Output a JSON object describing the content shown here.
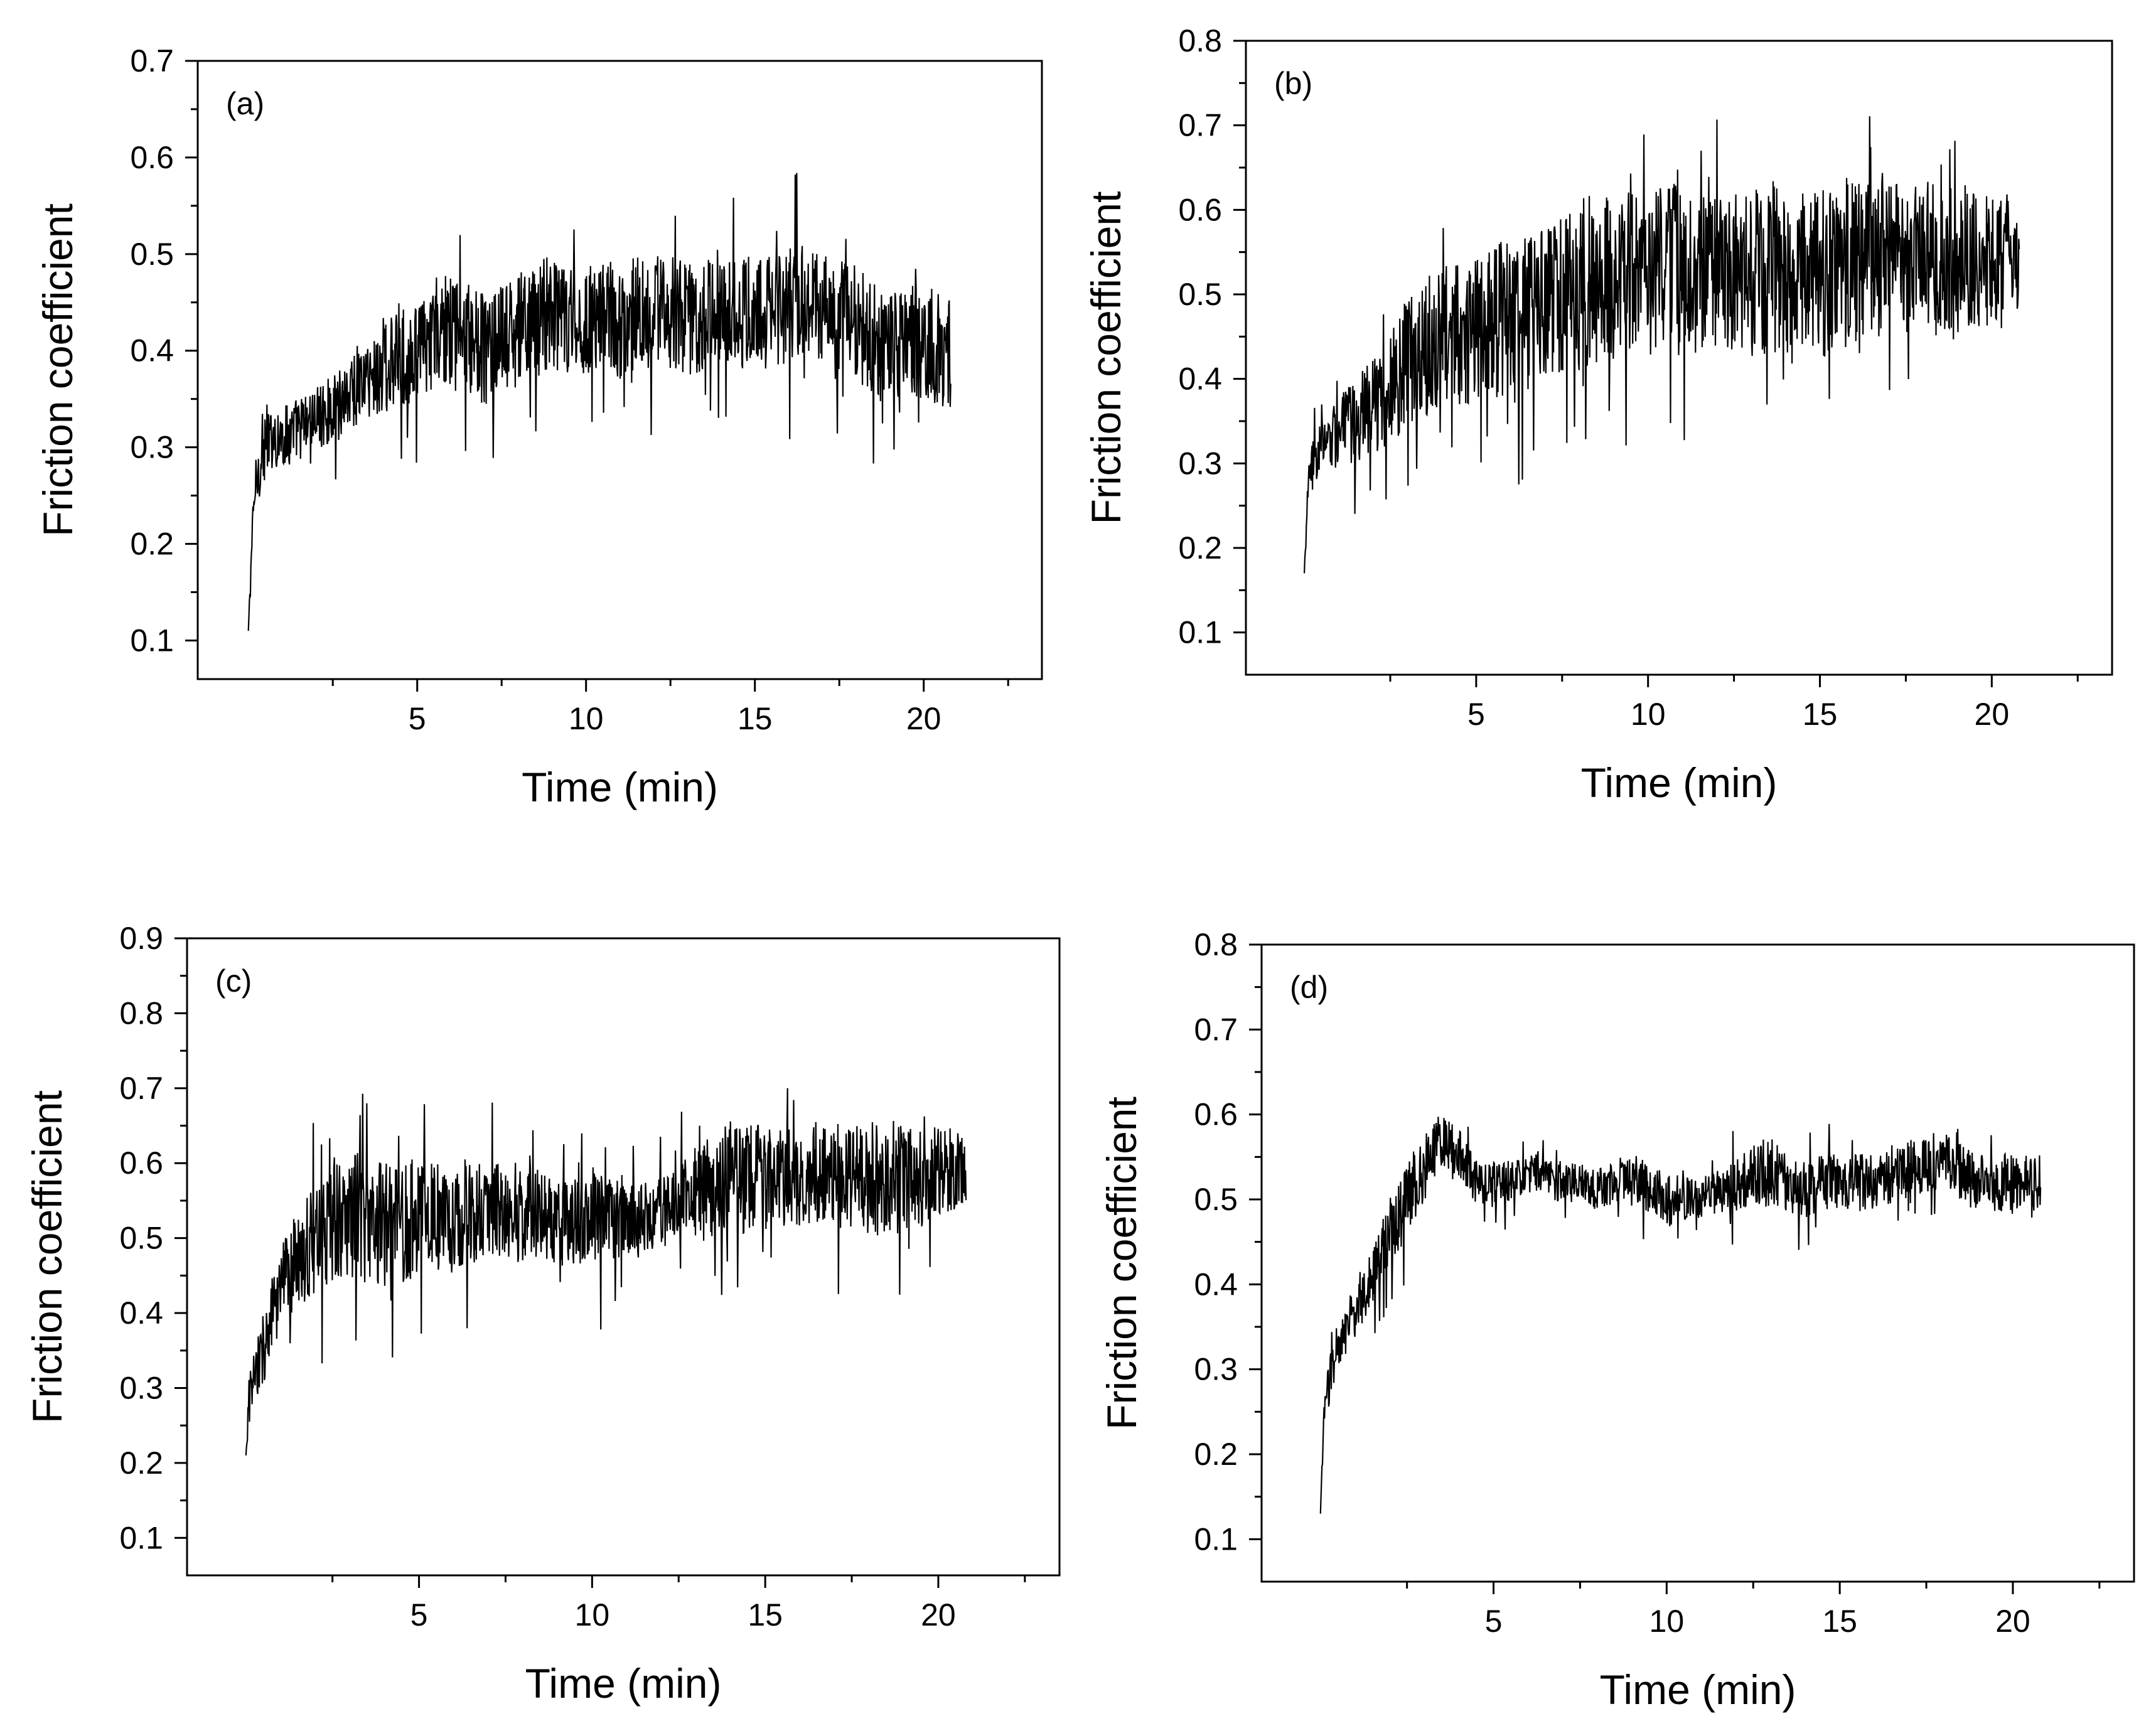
{
  "figure": {
    "description_panels": 4
  },
  "chart_data": [
    {
      "id": "a",
      "type": "line",
      "panel_label": "(a)",
      "title": "",
      "xlabel": "Time (min)",
      "ylabel": "Friction coefficient",
      "xlim": [
        -1.5,
        23.5
      ],
      "ylim": [
        0.06,
        0.7
      ],
      "xticks": [
        5,
        10,
        15,
        20
      ],
      "xtick_labels": [
        "5",
        "10",
        "15",
        "20"
      ],
      "yticks": [
        0.1,
        0.2,
        0.3,
        0.4,
        0.5,
        0.6,
        0.7
      ],
      "ytick_labels": [
        "0.1",
        "0.2",
        "0.3",
        "0.4",
        "0.5",
        "0.6",
        "0.7"
      ],
      "grid": false,
      "legend": "none",
      "series": [
        {
          "name": "friction",
          "x": [
            0,
            0.1,
            0.2,
            0.4,
            0.7,
            1.0,
            1.5,
            2.0,
            2.5,
            3.0,
            3.5,
            4.0,
            4.5,
            5.0,
            5.5,
            6.0,
            6.5,
            7.0,
            7.5,
            8.0,
            8.5,
            9.0,
            9.5,
            10.0,
            10.5,
            11.0,
            11.5,
            12.0,
            12.5,
            13.0,
            13.5,
            14.0,
            14.5,
            15.0,
            15.5,
            16.0,
            16.5,
            17.0,
            17.5,
            18.0,
            18.5,
            19.0,
            19.5,
            20.0,
            20.5,
            20.8
          ],
          "y": [
            0.11,
            0.2,
            0.26,
            0.29,
            0.31,
            0.31,
            0.32,
            0.33,
            0.34,
            0.36,
            0.37,
            0.38,
            0.39,
            0.4,
            0.41,
            0.42,
            0.41,
            0.4,
            0.41,
            0.42,
            0.43,
            0.44,
            0.43,
            0.43,
            0.44,
            0.43,
            0.44,
            0.44,
            0.44,
            0.43,
            0.44,
            0.45,
            0.44,
            0.44,
            0.44,
            0.45,
            0.45,
            0.44,
            0.44,
            0.43,
            0.41,
            0.4,
            0.41,
            0.41,
            0.4,
            0.4
          ],
          "noise_amplitude": [
            0.0,
            0.02,
            0.03,
            0.04,
            0.04,
            0.04,
            0.04,
            0.04,
            0.04,
            0.05,
            0.05,
            0.06,
            0.06,
            0.06,
            0.06,
            0.07,
            0.07,
            0.07,
            0.07,
            0.07,
            0.07,
            0.08,
            0.07,
            0.07,
            0.07,
            0.07,
            0.07,
            0.07,
            0.07,
            0.07,
            0.07,
            0.07,
            0.07,
            0.07,
            0.07,
            0.08,
            0.07,
            0.07,
            0.07,
            0.07,
            0.07,
            0.07,
            0.07,
            0.07,
            0.07,
            0.07
          ],
          "y_min": 0.11,
          "y_max": 0.61
        }
      ]
    },
    {
      "id": "b",
      "type": "line",
      "panel_label": "(b)",
      "title": "",
      "xlabel": "Time (min)",
      "ylabel": "Friction coefficient",
      "xlim": [
        -1.7,
        23.5
      ],
      "ylim": [
        0.05,
        0.8
      ],
      "xticks": [
        5,
        10,
        15,
        20
      ],
      "xtick_labels": [
        "5",
        "10",
        "15",
        "20"
      ],
      "yticks": [
        0.1,
        0.2,
        0.3,
        0.4,
        0.5,
        0.6,
        0.7,
        0.8
      ],
      "ytick_labels": [
        "0.1",
        "0.2",
        "0.3",
        "0.4",
        "0.5",
        "0.6",
        "0.7",
        "0.8"
      ],
      "grid": false,
      "legend": "none",
      "series": [
        {
          "name": "friction",
          "x": [
            0,
            0.1,
            0.3,
            0.6,
            1.0,
            1.5,
            2.0,
            2.5,
            3.0,
            3.5,
            4.0,
            4.5,
            5.0,
            5.5,
            6.0,
            6.5,
            7.0,
            7.5,
            8.0,
            8.5,
            9.0,
            9.5,
            10.0,
            10.5,
            11.0,
            11.5,
            12.0,
            12.5,
            13.0,
            13.5,
            14.0,
            14.5,
            15.0,
            15.5,
            16.0,
            16.5,
            17.0,
            17.5,
            18.0,
            18.5,
            19.0,
            19.5,
            20.0,
            20.5,
            20.8
          ],
          "y": [
            0.17,
            0.26,
            0.31,
            0.32,
            0.34,
            0.35,
            0.37,
            0.39,
            0.42,
            0.44,
            0.45,
            0.45,
            0.46,
            0.47,
            0.47,
            0.48,
            0.5,
            0.5,
            0.51,
            0.52,
            0.52,
            0.52,
            0.53,
            0.53,
            0.53,
            0.53,
            0.53,
            0.52,
            0.52,
            0.53,
            0.52,
            0.52,
            0.52,
            0.53,
            0.53,
            0.53,
            0.55,
            0.55,
            0.55,
            0.54,
            0.54,
            0.55,
            0.54,
            0.55,
            0.54
          ],
          "noise_amplitude": [
            0.0,
            0.04,
            0.04,
            0.04,
            0.05,
            0.06,
            0.07,
            0.08,
            0.09,
            0.1,
            0.1,
            0.1,
            0.1,
            0.11,
            0.11,
            0.11,
            0.11,
            0.11,
            0.12,
            0.12,
            0.12,
            0.12,
            0.12,
            0.12,
            0.12,
            0.12,
            0.12,
            0.12,
            0.12,
            0.12,
            0.12,
            0.12,
            0.12,
            0.12,
            0.12,
            0.12,
            0.1,
            0.1,
            0.1,
            0.11,
            0.11,
            0.1,
            0.1,
            0.08,
            0.07
          ],
          "y_min": 0.17,
          "y_max": 0.73
        }
      ]
    },
    {
      "id": "c",
      "type": "line",
      "panel_label": "(c)",
      "title": "",
      "xlabel": "Time (min)",
      "ylabel": "Friction coefficient",
      "xlim": [
        -1.7,
        23.5
      ],
      "ylim": [
        0.05,
        0.9
      ],
      "xticks": [
        5,
        10,
        15,
        20
      ],
      "xtick_labels": [
        "5",
        "10",
        "15",
        "20"
      ],
      "yticks": [
        0.1,
        0.2,
        0.3,
        0.4,
        0.5,
        0.6,
        0.7,
        0.8,
        0.9
      ],
      "ytick_labels": [
        "0.1",
        "0.2",
        "0.3",
        "0.4",
        "0.5",
        "0.6",
        "0.7",
        "0.8",
        "0.9"
      ],
      "grid": false,
      "legend": "none",
      "series": [
        {
          "name": "friction",
          "x": [
            0,
            0.1,
            0.3,
            0.6,
            1.0,
            1.5,
            2.0,
            2.5,
            3.0,
            3.5,
            4.0,
            4.5,
            5.0,
            5.5,
            6.0,
            6.5,
            7.0,
            7.5,
            8.0,
            8.5,
            9.0,
            9.5,
            10.0,
            10.5,
            11.0,
            11.5,
            12.0,
            12.5,
            13.0,
            13.5,
            14.0,
            14.5,
            15.0,
            15.5,
            16.0,
            16.5,
            17.0,
            17.5,
            18.0,
            18.5,
            19.0,
            19.5,
            20.0,
            20.5,
            20.8
          ],
          "y": [
            0.21,
            0.29,
            0.32,
            0.37,
            0.43,
            0.47,
            0.5,
            0.52,
            0.53,
            0.52,
            0.52,
            0.52,
            0.53,
            0.53,
            0.53,
            0.53,
            0.54,
            0.54,
            0.53,
            0.53,
            0.52,
            0.52,
            0.52,
            0.52,
            0.53,
            0.53,
            0.54,
            0.55,
            0.56,
            0.57,
            0.58,
            0.58,
            0.58,
            0.58,
            0.58,
            0.58,
            0.58,
            0.58,
            0.58,
            0.58,
            0.58,
            0.58,
            0.59,
            0.59,
            0.6
          ],
          "noise_amplitude": [
            0.0,
            0.04,
            0.05,
            0.06,
            0.07,
            0.08,
            0.09,
            0.09,
            0.1,
            0.1,
            0.1,
            0.1,
            0.09,
            0.09,
            0.09,
            0.08,
            0.08,
            0.08,
            0.08,
            0.07,
            0.07,
            0.07,
            0.08,
            0.07,
            0.06,
            0.06,
            0.06,
            0.07,
            0.08,
            0.08,
            0.09,
            0.09,
            0.08,
            0.08,
            0.08,
            0.08,
            0.08,
            0.08,
            0.09,
            0.09,
            0.09,
            0.08,
            0.07,
            0.07,
            0.06
          ],
          "y_min": 0.21,
          "y_max": 0.7
        }
      ]
    },
    {
      "id": "d",
      "type": "line",
      "panel_label": "(d)",
      "title": "",
      "xlabel": "Time (min)",
      "ylabel": "Friction coefficient",
      "xlim": [
        -1.7,
        23.5
      ],
      "ylim": [
        0.05,
        0.8
      ],
      "xticks": [
        5,
        10,
        15,
        20
      ],
      "xtick_labels": [
        "5",
        "10",
        "15",
        "20"
      ],
      "yticks": [
        0.1,
        0.2,
        0.3,
        0.4,
        0.5,
        0.6,
        0.7,
        0.8
      ],
      "ytick_labels": [
        "0.1",
        "0.2",
        "0.3",
        "0.4",
        "0.5",
        "0.6",
        "0.7",
        "0.8"
      ],
      "grid": false,
      "legend": "none",
      "series": [
        {
          "name": "friction",
          "x": [
            0,
            0.1,
            0.3,
            0.6,
            1.0,
            1.5,
            2.0,
            2.5,
            3.0,
            3.5,
            4.0,
            4.5,
            5.0,
            5.5,
            6.0,
            6.5,
            7.0,
            7.5,
            8.0,
            8.5,
            9.0,
            9.5,
            10.0,
            10.5,
            11.0,
            11.5,
            12.0,
            12.5,
            13.0,
            13.5,
            14.0,
            14.5,
            15.0,
            15.5,
            16.0,
            16.5,
            17.0,
            17.5,
            18.0,
            18.5,
            19.0,
            19.5,
            20.0,
            20.5,
            20.8
          ],
          "y": [
            0.13,
            0.24,
            0.3,
            0.33,
            0.37,
            0.41,
            0.46,
            0.5,
            0.54,
            0.57,
            0.55,
            0.52,
            0.52,
            0.52,
            0.53,
            0.53,
            0.52,
            0.52,
            0.51,
            0.52,
            0.53,
            0.51,
            0.5,
            0.5,
            0.5,
            0.51,
            0.52,
            0.53,
            0.53,
            0.52,
            0.51,
            0.52,
            0.52,
            0.52,
            0.52,
            0.53,
            0.54,
            0.54,
            0.55,
            0.53,
            0.52,
            0.52,
            0.52,
            0.52,
            0.52
          ],
          "noise_amplitude": [
            0.0,
            0.03,
            0.03,
            0.03,
            0.04,
            0.04,
            0.05,
            0.05,
            0.05,
            0.04,
            0.04,
            0.03,
            0.03,
            0.03,
            0.03,
            0.03,
            0.03,
            0.03,
            0.03,
            0.03,
            0.04,
            0.03,
            0.04,
            0.03,
            0.03,
            0.03,
            0.04,
            0.04,
            0.05,
            0.04,
            0.04,
            0.04,
            0.04,
            0.04,
            0.04,
            0.04,
            0.04,
            0.04,
            0.04,
            0.04,
            0.04,
            0.04,
            0.04,
            0.04,
            0.04
          ],
          "y_min": 0.13,
          "y_max": 0.62
        }
      ]
    }
  ]
}
